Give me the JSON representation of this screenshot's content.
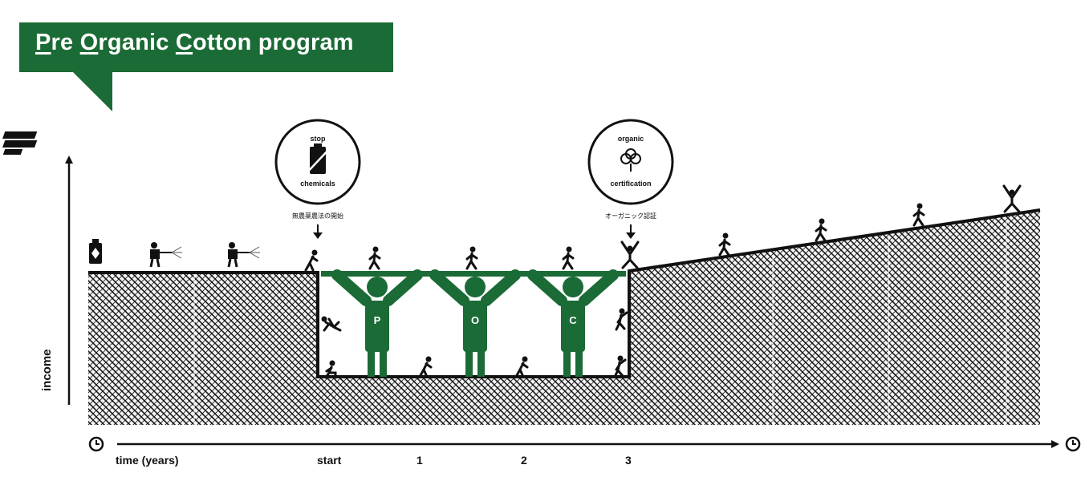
{
  "title": {
    "initial_p": "P",
    "rest_p": "re ",
    "initial_o": "O",
    "rest_o": "rganic ",
    "initial_c": "C",
    "rest_c": "otton program"
  },
  "badges": {
    "stop": {
      "top": "stop",
      "bottom": "chemicals",
      "caption": "無農薬農法の開始"
    },
    "organic": {
      "top": "organic",
      "bottom": "certification",
      "caption": "オーガニック認証"
    }
  },
  "pillars": [
    "P",
    "O",
    "C"
  ],
  "axes": {
    "y_label": "income",
    "x_label": "time (years)",
    "ticks": [
      "start",
      "1",
      "2",
      "3"
    ]
  },
  "colors": {
    "green": "#1a6b35",
    "ink": "#111111"
  },
  "icons": [
    "money-stack-icon",
    "money-small-icon",
    "clock-start-icon",
    "clock-end-icon",
    "chemical-bottle-icon",
    "sprayer-icon",
    "walking-person-icon",
    "cotton-icon"
  ]
}
